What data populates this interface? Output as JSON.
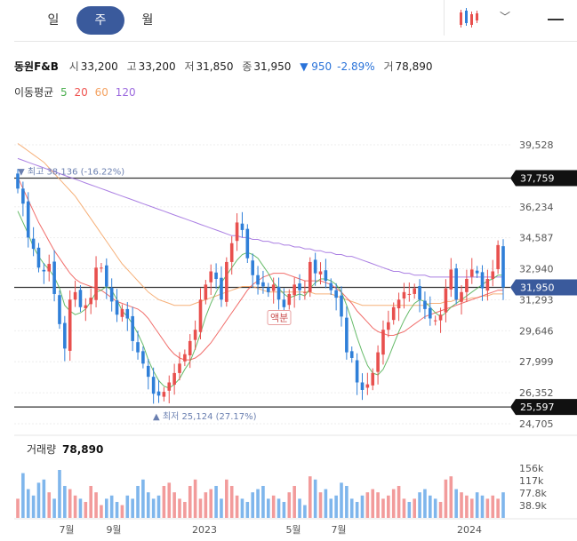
{
  "tabs": [
    {
      "label": "일",
      "active": false
    },
    {
      "label": "주",
      "active": true
    },
    {
      "label": "월",
      "active": false
    }
  ],
  "quote": {
    "name": "동원F&B",
    "open_label": "시",
    "open": "33,200",
    "high_label": "고",
    "high": "33,200",
    "low_label": "저",
    "low": "31,850",
    "close_label": "종",
    "close": "31,950",
    "change": "▼ 950",
    "change_pct": "-2.89%",
    "volume_label": "거",
    "volume": "78,890"
  },
  "ma_legend": {
    "title": "이동평균",
    "periods": [
      {
        "label": "5",
        "color": "#4caf50"
      },
      {
        "label": "20",
        "color": "#ef5350"
      },
      {
        "label": "60",
        "color": "#f4a261"
      },
      {
        "label": "120",
        "color": "#9c6ade"
      }
    ]
  },
  "colors": {
    "up": "#e8504e",
    "down": "#2f7fd8",
    "up_volume": "#f29b9b",
    "down_volume": "#7fb6ec",
    "accent": "#3a5a9c"
  },
  "chart_data": {
    "type": "candlestick",
    "price_ticks": [
      "39,528",
      "37,759",
      "36,234",
      "34,587",
      "32,940",
      "31,293",
      "29,646",
      "27,999",
      "26,352",
      "25,597",
      "24,705"
    ],
    "price_tick_values": [
      39528,
      37759,
      36234,
      34587,
      32940,
      31293,
      29646,
      27999,
      26352,
      25597,
      24705
    ],
    "ylim": [
      24705,
      39528
    ],
    "horizontal_lines": [
      {
        "value": 37759,
        "label": "37,759"
      },
      {
        "value": 25597,
        "label": "25,597"
      },
      {
        "value": 31950,
        "label": "31,950"
      }
    ],
    "current_price": {
      "value": 31950,
      "label": "31,950"
    },
    "annotations": [
      {
        "text": "▼ 최고 38,136 (-16.22%)",
        "value": 38136
      },
      {
        "text": "▲ 최저 25,124 (27.17%)",
        "value": 25124
      },
      {
        "text": "액분",
        "value": 30300
      }
    ],
    "x_labels": [
      "7월",
      "9월",
      "2023",
      "5월",
      "7월",
      "2024"
    ],
    "volume_title": "거래량",
    "volume_value": "78,890",
    "volume_ticks": [
      "156k",
      "117k",
      "77.8k",
      "38.9k"
    ],
    "volume_tick_values": [
      156000,
      117000,
      77800,
      38900
    ],
    "volume_max": 175000,
    "closes": [
      37200,
      36400,
      34600,
      34000,
      33000,
      32800,
      33200,
      31600,
      30000,
      28700,
      31300,
      31700,
      30900,
      31000,
      31400,
      33000,
      33000,
      32000,
      31200,
      30500,
      30800,
      30300,
      29100,
      28500,
      27900,
      27200,
      26300,
      26200,
      26400,
      26900,
      27400,
      27900,
      28400,
      29100,
      29700,
      31300,
      32100,
      32800,
      32400,
      31300,
      33300,
      34300,
      35400,
      35000,
      33500,
      32600,
      32100,
      32000,
      31700,
      32100,
      31300,
      30900,
      31600,
      32100,
      31800,
      31700,
      33300,
      32700,
      32800,
      32300,
      31800,
      31400,
      30400,
      28500,
      28200,
      26900,
      26500,
      26800,
      27400,
      28500,
      29700,
      30100,
      30900,
      31300,
      31700,
      31600,
      31900,
      31300,
      30800,
      30300,
      30200,
      30500,
      31900,
      32900,
      31300,
      31700,
      32400,
      32900,
      32700,
      31900,
      32400,
      32800,
      34200,
      31950
    ],
    "ma5": [
      36000,
      35400,
      34800,
      34100,
      33600,
      33200,
      32900,
      32500,
      31900,
      31000,
      30700,
      30500,
      30600,
      30800,
      31200,
      31700,
      31800,
      32000,
      31800,
      31300,
      30700,
      30400,
      30000,
      29500,
      28900,
      28100,
      27500,
      27000,
      26700,
      26600,
      26800,
      27100,
      27600,
      28000,
      28700,
      29500,
      30400,
      31100,
      31700,
      32200,
      32600,
      33000,
      33400,
      33700,
      33800,
      33700,
      33500,
      33100,
      32700,
      32200,
      31900,
      31600,
      31400,
      31500,
      31600,
      31500,
      31900,
      32200,
      32400,
      32400,
      32300,
      32100,
      31700,
      31000,
      30200,
      29300,
      28500,
      27800,
      27400,
      27300,
      27600,
      28200,
      28900,
      29600,
      30200,
      30700,
      31100,
      31300,
      31200,
      30900,
      30600,
      30400,
      30600,
      30900,
      31100,
      31300,
      31500,
      31700,
      31900,
      32100,
      32300,
      32400,
      32600,
      32600
    ],
    "ma20": [
      37800,
      37200,
      36600,
      36000,
      35400,
      34900,
      34400,
      33900,
      33500,
      33100,
      32700,
      32400,
      32200,
      32100,
      32000,
      31900,
      31800,
      31600,
      31400,
      31200,
      31100,
      31000,
      30900,
      30800,
      30600,
      30300,
      29900,
      29500,
      29100,
      28700,
      28400,
      28200,
      28100,
      28100,
      28200,
      28400,
      28700,
      29000,
      29400,
      29800,
      30200,
      30600,
      31000,
      31400,
      31800,
      32100,
      32300,
      32500,
      32600,
      32700,
      32700,
      32700,
      32600,
      32500,
      32400,
      32300,
      32300,
      32300,
      32300,
      32200,
      32100,
      31900,
      31700,
      31400,
      31100,
      30700,
      30400,
      30100,
      29800,
      29600,
      29500,
      29400,
      29400,
      29500,
      29600,
      29800,
      30000,
      30200,
      30400,
      30500,
      30600,
      30700,
      30800,
      30900,
      31000,
      31100,
      31200,
      31300,
      31400,
      31500,
      31600,
      31700,
      31800,
      31800
    ],
    "ma60": [
      39600,
      39400,
      39200,
      39000,
      38800,
      38600,
      38300,
      38000,
      37700,
      37400,
      37100,
      36800,
      36400,
      36000,
      35600,
      35200,
      34800,
      34400,
      34000,
      33600,
      33200,
      32900,
      32600,
      32300,
      32000,
      31700,
      31500,
      31300,
      31200,
      31100,
      31000,
      31000,
      31000,
      31000,
      31100,
      31200,
      31300,
      31400,
      31500,
      31600,
      31700,
      31800,
      31900,
      32000,
      32000,
      32000,
      31900,
      31800,
      31700,
      31700,
      31700,
      31700,
      31700,
      31700,
      31700,
      31700,
      31700,
      31600,
      31600,
      31600,
      31600,
      31500,
      31400,
      31300,
      31200,
      31100,
      31000,
      31000,
      31000,
      31000,
      31000,
      31000,
      31000,
      31000,
      31000,
      31000,
      31000,
      31000,
      31000,
      31100,
      31100,
      31100,
      31200,
      31200,
      31300,
      31300,
      31300,
      31400,
      31400,
      31500,
      31500,
      31600,
      31600,
      31600
    ],
    "ma120": [
      38800,
      38700,
      38600,
      38500,
      38400,
      38300,
      38200,
      38100,
      38000,
      37900,
      37800,
      37700,
      37600,
      37500,
      37400,
      37300,
      37200,
      37100,
      37000,
      36900,
      36800,
      36700,
      36600,
      36500,
      36400,
      36300,
      36200,
      36100,
      36000,
      35900,
      35800,
      35700,
      35600,
      35500,
      35400,
      35300,
      35200,
      35100,
      35000,
      34900,
      34800,
      34700,
      34700,
      34600,
      34600,
      34500,
      34500,
      34400,
      34400,
      34300,
      34300,
      34200,
      34200,
      34100,
      34100,
      34000,
      34000,
      33900,
      33900,
      33800,
      33800,
      33700,
      33700,
      33600,
      33600,
      33500,
      33400,
      33300,
      33200,
      33100,
      33000,
      32900,
      32800,
      32800,
      32700,
      32700,
      32600,
      32600,
      32600,
      32500,
      32500,
      32500,
      32500,
      32500,
      32500,
      32500,
      32500,
      32500,
      32500,
      32500,
      32500,
      32500,
      32500,
      32500
    ],
    "volumes": [
      60,
      140,
      90,
      70,
      110,
      120,
      80,
      60,
      150,
      100,
      90,
      70,
      60,
      50,
      100,
      80,
      40,
      60,
      70,
      50,
      40,
      70,
      60,
      100,
      120,
      80,
      60,
      70,
      100,
      110,
      80,
      60,
      50,
      100,
      120,
      60,
      80,
      90,
      100,
      60,
      120,
      100,
      70,
      60,
      50,
      80,
      90,
      100,
      60,
      70,
      60,
      50,
      80,
      100,
      60,
      40,
      130,
      120,
      80,
      90,
      60,
      70,
      110,
      100,
      60,
      50,
      70,
      80,
      90,
      80,
      60,
      70,
      90,
      100,
      60,
      50,
      60,
      80,
      90,
      70,
      60,
      50,
      120,
      130,
      90,
      80,
      70,
      60,
      80,
      70,
      60,
      70,
      60,
      80
    ]
  }
}
